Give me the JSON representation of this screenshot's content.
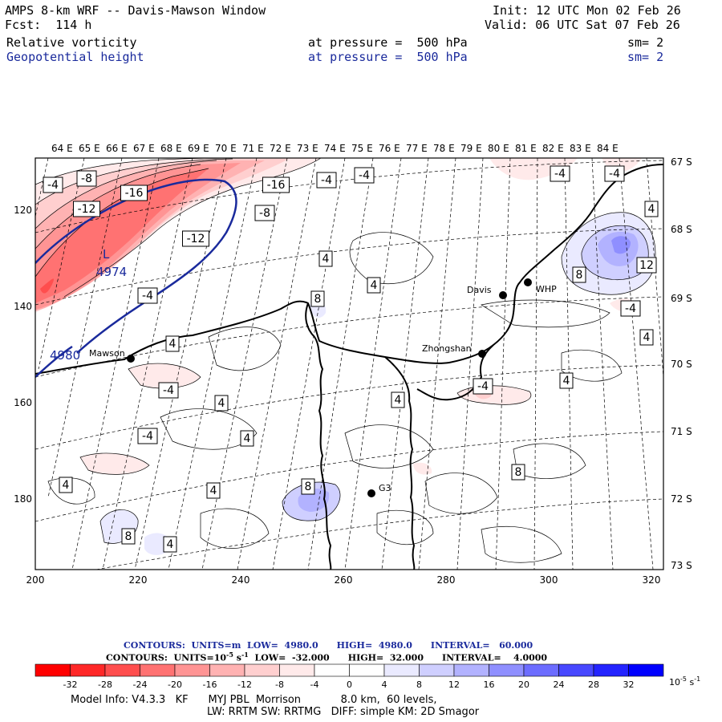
{
  "header": {
    "title": "AMPS 8-km WRF -- Davis-Mawson Window",
    "fcst": "Fcst:  114 h",
    "init": "Init: 12 UTC Mon 02 Feb 26",
    "valid": "Valid: 06 UTC Sat 07 Feb 26",
    "fields": [
      {
        "name": "Relative vorticity",
        "level": "at pressure =  500 hPa",
        "sm": "sm= 2",
        "color": "#000000"
      },
      {
        "name": "Geopotential height",
        "level": "at pressure =  500 hPa",
        "sm": "sm= 2",
        "color": "#1a2a9c"
      }
    ]
  },
  "map": {
    "lon_labels": [
      "64 E",
      "65 E",
      "66 E",
      "67 E",
      "68 E",
      "69 E",
      "70 E",
      "71 E",
      "72 E",
      "73 E",
      "74 E",
      "75 E",
      "76 E",
      "77 E",
      "78 E",
      "79 E",
      "80 E",
      "81 E",
      "82 E",
      "83 E",
      "84 E"
    ],
    "lat_labels": [
      "67 S",
      "68 S",
      "69 S",
      "70 S",
      "71 S",
      "72 S",
      "73 S"
    ],
    "x_ticks": [
      "200",
      "220",
      "240",
      "260",
      "280",
      "300",
      "320"
    ],
    "y_ticks": [
      "120",
      "140",
      "160",
      "180"
    ],
    "stations": [
      {
        "name": "Mawson"
      },
      {
        "name": "Davis"
      },
      {
        "name": "WHP"
      },
      {
        "name": "Zhongshan"
      },
      {
        "name": "G3"
      }
    ],
    "height_labels": [
      {
        "label": "L"
      },
      {
        "label": "4974"
      },
      {
        "label": "4980"
      }
    ],
    "vort_labels": [
      "-4",
      "-8",
      "-16",
      "-16",
      "-4",
      "-4",
      "-4",
      "-4",
      "-12",
      "-8",
      "-12",
      "-4",
      "4",
      "4",
      "4",
      "8",
      "8",
      "12",
      "-4",
      "4",
      "4",
      "-4",
      "4",
      "-4",
      "4",
      "4",
      "4",
      "4",
      "4",
      "8",
      "8",
      "8",
      "4",
      "-4"
    ]
  },
  "footer": {
    "line1": {
      "label": "CONTOURS:  UNITS=m  LOW=  4980.0",
      "high": "HIGH=  4980.0",
      "interval": "INTERVAL=   60.000"
    },
    "line2": {
      "label": "CONTOURS:  UNITS=10",
      "exp": "-5",
      "units_tail": " s",
      "sup": "-1",
      "low": "  LOW=  -32.000",
      "high": "HIGH=  32.000",
      "interval": "INTERVAL=    4.0000"
    },
    "colorbar": {
      "ticks": [
        "-32",
        "-28",
        "-24",
        "-20",
        "-16",
        "-12",
        "-8",
        "-4",
        "0",
        "4",
        "8",
        "12",
        "16",
        "20",
        "24",
        "28",
        "32"
      ],
      "colors": [
        "#ff0000",
        "#ff2828",
        "#ff4e4e",
        "#ff7272",
        "#ff9494",
        "#ffb2b2",
        "#ffcfcf",
        "#ffeaea",
        "#ffffff",
        "#ffffff",
        "#eaeaff",
        "#cfcfff",
        "#b2b2ff",
        "#8f8fff",
        "#6c6cff",
        "#4848ff",
        "#2424ff",
        "#0000ff"
      ],
      "unit": "10",
      "unit_exp": "-5",
      "unit_tail": " s",
      "unit_sup": "-1"
    },
    "info1": "Model Info: V4.3.3   KF      MYJ PBL  Morrison            8.0 km,  60 levels,",
    "info2": "LW: RRTM SW: RRTMG   DIFF: simple KM: 2D Smagor"
  }
}
